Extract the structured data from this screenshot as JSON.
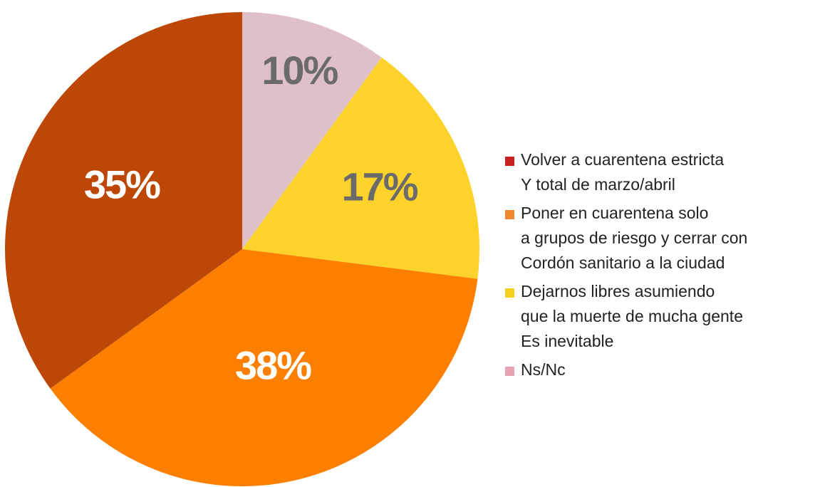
{
  "chart_data": {
    "type": "pie",
    "categories": [
      "Volver a cuarentena estricta\nY total de marzo/abril",
      "Poner en cuarentena solo\na grupos de riesgo y cerrar con\nCordón sanitario a la ciudad",
      "Dejarnos libres asumiendo\nque la muerte de mucha gente\nEs inevitable",
      "Ns/Nc"
    ],
    "values": [
      35,
      38,
      17,
      10
    ],
    "value_labels": [
      "35%",
      "38%",
      "17%",
      "10%"
    ],
    "colors": [
      "#bd4706",
      "#fd7f00",
      "#fdd22b",
      "#dfc0c8"
    ],
    "legend_colors": [
      "#c8201f",
      "#f08a30",
      "#f8d020",
      "#e8a2b2"
    ]
  }
}
